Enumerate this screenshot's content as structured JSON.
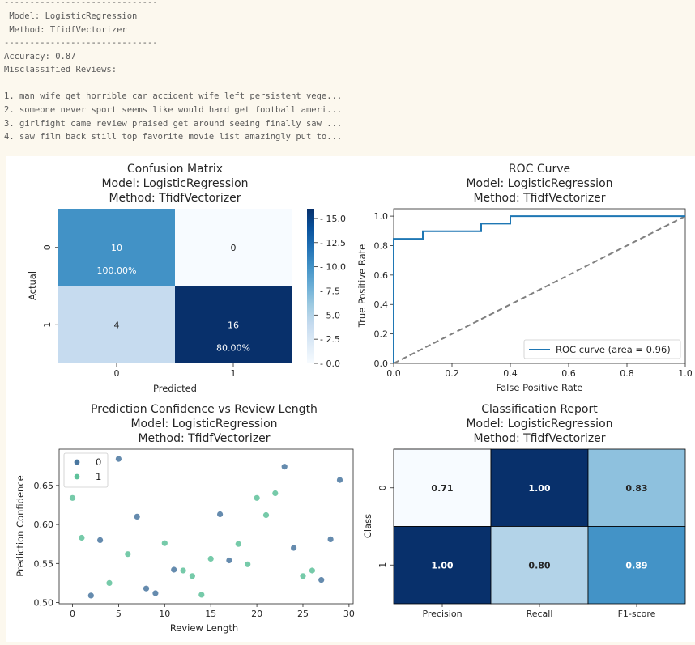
{
  "console": {
    "separator": "------------------------------",
    "model_line": " Model: LogisticRegression",
    "method_line": " Method: TfidfVectorizer",
    "accuracy_line": "Accuracy: 0.87",
    "misclassified_header": "Misclassified Reviews:",
    "reviews": [
      "1. man wife get horrible car accident wife left persistent vege...",
      "2. someone never sport seems like would hard get football ameri...",
      "3. girlfight came review praised get around seeing finally saw ...",
      "4. saw film back still top favorite movie list amazingly put to..."
    ]
  },
  "chart_data": [
    {
      "type": "heatmap",
      "title": [
        "Confusion Matrix",
        "Model: LogisticRegression",
        "Method: TfidfVectorizer"
      ],
      "xlabel": "Predicted",
      "ylabel": "Actual",
      "x_ticks": [
        "0",
        "1"
      ],
      "y_ticks": [
        "0",
        "1"
      ],
      "values": [
        [
          10,
          0
        ],
        [
          4,
          16
        ]
      ],
      "cell_labels": [
        [
          "10",
          "0"
        ],
        [
          "4",
          "16"
        ]
      ],
      "cell_percent_labels": [
        [
          "100.00%",
          ""
        ],
        [
          "",
          "80.00%"
        ]
      ],
      "colorbar": {
        "min": 0,
        "max": 16,
        "ticks": [
          "0.0",
          "2.5",
          "5.0",
          "7.5",
          "10.0",
          "12.5",
          "15.0"
        ]
      },
      "colormap": "Blues"
    },
    {
      "type": "line",
      "title": [
        "ROC Curve",
        "Model: LogisticRegression",
        "Method: TfidfVectorizer"
      ],
      "xlabel": "False Positive Rate",
      "ylabel": "True Positive Rate",
      "xlim": [
        0,
        1
      ],
      "ylim": [
        0,
        1.05
      ],
      "x_ticks": [
        "0.0",
        "0.2",
        "0.4",
        "0.6",
        "0.8",
        "1.0"
      ],
      "y_ticks": [
        "0.0",
        "0.2",
        "0.4",
        "0.6",
        "0.8",
        "1.0"
      ],
      "series": [
        {
          "name": "ROC curve (area = 0.96)",
          "color": "#1f77b4",
          "x": [
            0,
            0,
            0.1,
            0.1,
            0.3,
            0.3,
            0.4,
            0.4,
            1.0
          ],
          "y": [
            0,
            0.8462,
            0.8462,
            0.8974,
            0.8974,
            0.9487,
            0.9487,
            1.0,
            1.0
          ]
        }
      ],
      "diagonal": {
        "x": [
          0,
          1
        ],
        "y": [
          0,
          1
        ],
        "color": "#808080"
      },
      "legend_position": "lower-right"
    },
    {
      "type": "scatter",
      "title": [
        "Prediction Confidence vs Review Length",
        "Model: LogisticRegression",
        "Method: TfidfVectorizer"
      ],
      "xlabel": "Review Length",
      "ylabel": "Prediction Confidence",
      "xlim": [
        -1.45,
        30.45
      ],
      "ylim": [
        0.4985,
        0.6965
      ],
      "x_ticks": [
        0,
        5,
        10,
        15,
        20,
        25,
        30
      ],
      "y_ticks": [
        0.5,
        0.55,
        0.6,
        0.65
      ],
      "y_tick_labels": [
        "0.50",
        "0.55",
        "0.60",
        "0.65"
      ],
      "legend_position": "top-left",
      "series": [
        {
          "name": "0",
          "color": "#4a77a0",
          "points": [
            [
              2,
              0.509
            ],
            [
              3,
              0.58
            ],
            [
              5,
              0.684
            ],
            [
              7,
              0.61
            ],
            [
              8,
              0.518
            ],
            [
              9,
              0.512
            ],
            [
              11,
              0.542
            ],
            [
              16,
              0.613
            ],
            [
              17,
              0.554
            ],
            [
              23,
              0.674
            ],
            [
              24,
              0.57
            ],
            [
              27,
              0.529
            ],
            [
              28,
              0.581
            ],
            [
              29,
              0.657
            ]
          ]
        },
        {
          "name": "1",
          "color": "#5ec19a",
          "points": [
            [
              0,
              0.634
            ],
            [
              1,
              0.583
            ],
            [
              4,
              0.525
            ],
            [
              6,
              0.562
            ],
            [
              10,
              0.576
            ],
            [
              12,
              0.541
            ],
            [
              13,
              0.534
            ],
            [
              14,
              0.51
            ],
            [
              15,
              0.556
            ],
            [
              18,
              0.575
            ],
            [
              19,
              0.549
            ],
            [
              20,
              0.634
            ],
            [
              21,
              0.612
            ],
            [
              22,
              0.64
            ],
            [
              25,
              0.534
            ],
            [
              26,
              0.541
            ]
          ]
        }
      ]
    },
    {
      "type": "heatmap",
      "title": [
        "Classification Report",
        "Model: LogisticRegression",
        "Method: TfidfVectorizer"
      ],
      "xlabel": "",
      "ylabel": "Class",
      "x_ticks": [
        "Precision",
        "Recall",
        "F1-score"
      ],
      "y_ticks": [
        "0",
        "1"
      ],
      "values": [
        [
          0.71,
          1.0,
          0.83
        ],
        [
          1.0,
          0.8,
          0.89
        ]
      ],
      "cell_labels": [
        [
          "0.71",
          "1.00",
          "0.83"
        ],
        [
          "1.00",
          "0.80",
          "0.89"
        ]
      ],
      "colormap": "Blues"
    }
  ]
}
